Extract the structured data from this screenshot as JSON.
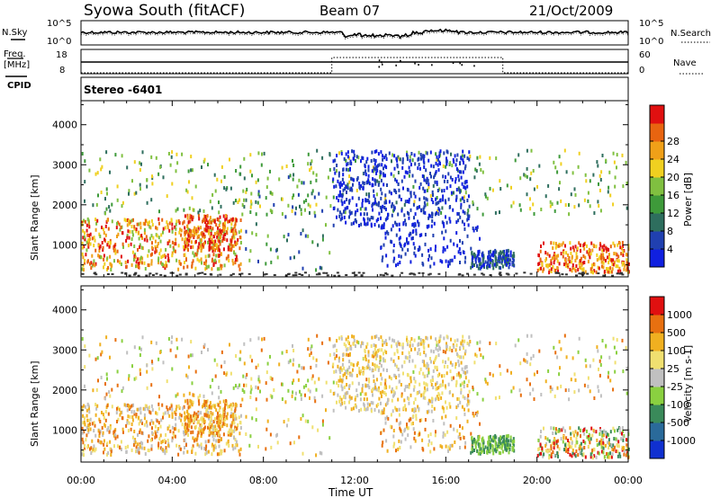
{
  "header": {
    "station": "Syowa South (fitACF)",
    "beam": "Beam 07",
    "date": "21/Oct/2009"
  },
  "left_labels": {
    "nsky": "N.Sky",
    "freq": "Freq.",
    "freq_unit": "[MHz]",
    "cpid": "CPID",
    "nsky_ticks": [
      "10^5",
      "10^0"
    ],
    "freq_ticks": [
      "18",
      "8"
    ]
  },
  "right_labels": {
    "nsearch": "N.Search",
    "nave": "Nave",
    "nsearch_ticks": [
      "10^5",
      "10^0"
    ],
    "nave_ticks": [
      "60",
      "0"
    ]
  },
  "cpid_text": "Stereo -6401",
  "chart_data": [
    {
      "type": "heatmap",
      "name": "power",
      "ylabel": "Slant Range [km]",
      "y_ticks": [
        1000,
        2000,
        3000,
        4000
      ],
      "ylim": [
        200,
        4600
      ],
      "colorbar": {
        "label": "Power [dB]",
        "ticks": [
          "4",
          "8",
          "12",
          "16",
          "20",
          "24",
          "28"
        ],
        "colors": [
          "#1020e0",
          "#2040b0",
          "#2e6e5e",
          "#3e9a3a",
          "#80c040",
          "#f0d020",
          "#f0a018",
          "#e86410",
          "#e01010"
        ]
      },
      "features": [
        {
          "t0": 0.0,
          "t1": 7.0,
          "r0": 500,
          "r1": 1800,
          "level": "high",
          "desc": "ground/near-range scatter 00-07 UT"
        },
        {
          "t0": 11.0,
          "t1": 17.0,
          "r0": 1500,
          "r1": 3400,
          "level": "low",
          "desc": "weak blue scatter 11-17 UT"
        },
        {
          "t0": 17.0,
          "t1": 19.0,
          "r0": 500,
          "r1": 900,
          "level": "low"
        },
        {
          "t0": 20.0,
          "t1": 24.0,
          "r0": 400,
          "r1": 1100,
          "level": "high"
        }
      ]
    },
    {
      "type": "heatmap",
      "name": "velocity",
      "ylabel": "Slant Range [km]",
      "y_ticks": [
        1000,
        2000,
        3000,
        4000
      ],
      "ylim": [
        200,
        4600
      ],
      "xlabel": "Time UT",
      "x_ticks": [
        "00:00",
        "04:00",
        "08:00",
        "12:00",
        "16:00",
        "20:00",
        "00:00"
      ],
      "colorbar": {
        "label": "Velocity [m s-1]",
        "ticks": [
          "1000",
          "500",
          "100",
          "25",
          "-25",
          "-100",
          "-500",
          "-1000"
        ],
        "colors": [
          "#1030d0",
          "#2a6a9a",
          "#3a8a5a",
          "#8ad040",
          "#c0c0c0",
          "#f0e070",
          "#f0b020",
          "#e87010",
          "#e01010"
        ]
      }
    }
  ]
}
